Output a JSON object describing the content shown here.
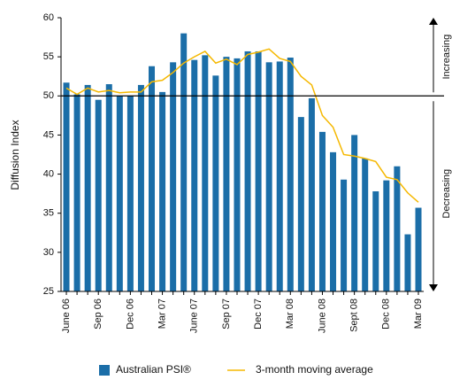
{
  "chart_data": {
    "type": "bar",
    "y_label": "Diffusion Index",
    "categories": [
      "June 06",
      null,
      null,
      "Sep 06",
      null,
      null,
      "Dec 06",
      null,
      null,
      "Mar 07",
      null,
      null,
      "June 07",
      null,
      null,
      "Sep 07",
      null,
      null,
      "Dec 07",
      null,
      null,
      "Mar 08",
      null,
      null,
      "June 08",
      null,
      null,
      "Sept 08",
      null,
      null,
      "Dec 08",
      null,
      null,
      "Mar 09"
    ],
    "series": [
      {
        "name": "Australian PSI®",
        "type": "bar",
        "color": "#1b6ea8",
        "values": [
          51.7,
          50.2,
          51.4,
          49.5,
          51.5,
          50.0,
          50.0,
          51.4,
          53.8,
          50.5,
          54.3,
          58.0,
          54.6,
          55.2,
          52.6,
          55.0,
          54.8,
          55.7,
          55.7,
          54.3,
          54.4,
          54.9,
          47.3,
          49.7,
          45.4,
          42.8,
          39.3,
          45.0,
          42.0,
          37.8,
          39.2,
          41.0,
          32.3,
          35.7
        ]
      },
      {
        "name": "3-month moving average",
        "type": "line",
        "color": "#f5b800",
        "values": [
          51.0,
          50.2,
          51.0,
          50.5,
          50.7,
          50.4,
          50.5,
          50.5,
          51.8,
          52.0,
          53.0,
          54.2,
          55.0,
          55.7,
          54.2,
          54.7,
          54.0,
          55.3,
          55.6,
          56.0,
          54.8,
          54.4,
          52.5,
          51.4,
          47.5,
          46.0,
          42.5,
          42.3,
          42.0,
          41.6,
          39.6,
          39.3,
          37.6,
          36.4
        ]
      }
    ],
    "ylim": [
      25,
      60
    ],
    "yticks": [
      25,
      30,
      35,
      40,
      45,
      50,
      55,
      60
    ],
    "reference_line": 50,
    "annotations": [
      "Increasing",
      "Decreasing"
    ]
  }
}
